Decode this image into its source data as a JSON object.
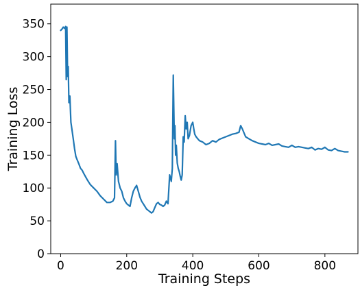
{
  "chart_data": {
    "type": "line",
    "title": "",
    "xlabel": "Training Steps",
    "ylabel": "Training Loss",
    "xlim": [
      -30,
      900
    ],
    "ylim": [
      0,
      380
    ],
    "xticks": [
      0,
      200,
      400,
      600,
      800
    ],
    "yticks": [
      0,
      50,
      100,
      150,
      200,
      250,
      300,
      350
    ],
    "grid": false,
    "legend": "none",
    "colors": {
      "line": "#1f77b4"
    },
    "series": [
      {
        "x": [
          0,
          4,
          8,
          12,
          15,
          17,
          19,
          21,
          23,
          25,
          28,
          31,
          34,
          38,
          42,
          46,
          50,
          55,
          60,
          65,
          70,
          80,
          90,
          100,
          110,
          120,
          130,
          140,
          150,
          158,
          163,
          166,
          168,
          171,
          175,
          180,
          185,
          190,
          195,
          200,
          205,
          210,
          215,
          220,
          225,
          230,
          235,
          240,
          245,
          250,
          255,
          260,
          265,
          270,
          275,
          280,
          285,
          290,
          295,
          300,
          305,
          310,
          315,
          320,
          325,
          330,
          335,
          338,
          341,
          344,
          346,
          348,
          350,
          353,
          356,
          359,
          362,
          365,
          368,
          371,
          374,
          377,
          380,
          383,
          386,
          390,
          395,
          400,
          403,
          406,
          410,
          415,
          420,
          430,
          440,
          450,
          460,
          470,
          480,
          490,
          500,
          510,
          520,
          530,
          540,
          545,
          550,
          560,
          570,
          580,
          590,
          600,
          610,
          620,
          630,
          640,
          650,
          660,
          670,
          680,
          690,
          700,
          710,
          720,
          730,
          740,
          750,
          760,
          770,
          780,
          790,
          800,
          810,
          820,
          830,
          840,
          850,
          860,
          870
        ],
        "y": [
          340,
          342,
          345,
          343,
          346,
          265,
          345,
          270,
          285,
          230,
          240,
          200,
          190,
          175,
          160,
          148,
          143,
          137,
          130,
          127,
          122,
          113,
          105,
          100,
          95,
          88,
          83,
          78,
          78,
          80,
          85,
          172,
          120,
          137,
          110,
          100,
          95,
          85,
          80,
          76,
          74,
          72,
          85,
          95,
          100,
          104,
          95,
          86,
          80,
          76,
          72,
          68,
          66,
          64,
          62,
          64,
          70,
          76,
          78,
          75,
          74,
          72,
          74,
          80,
          76,
          120,
          110,
          130,
          272,
          175,
          195,
          150,
          165,
          138,
          130,
          125,
          118,
          112,
          120,
          178,
          170,
          210,
          190,
          200,
          175,
          180,
          195,
          200,
          190,
          182,
          178,
          175,
          172,
          170,
          166,
          168,
          172,
          170,
          174,
          176,
          178,
          180,
          182,
          183,
          185,
          195,
          190,
          178,
          175,
          172,
          170,
          168,
          167,
          166,
          168,
          165,
          166,
          167,
          164,
          163,
          162,
          165,
          162,
          163,
          162,
          161,
          160,
          162,
          158,
          160,
          159,
          162,
          158,
          157,
          160,
          157,
          156,
          155,
          155
        ]
      }
    ]
  }
}
